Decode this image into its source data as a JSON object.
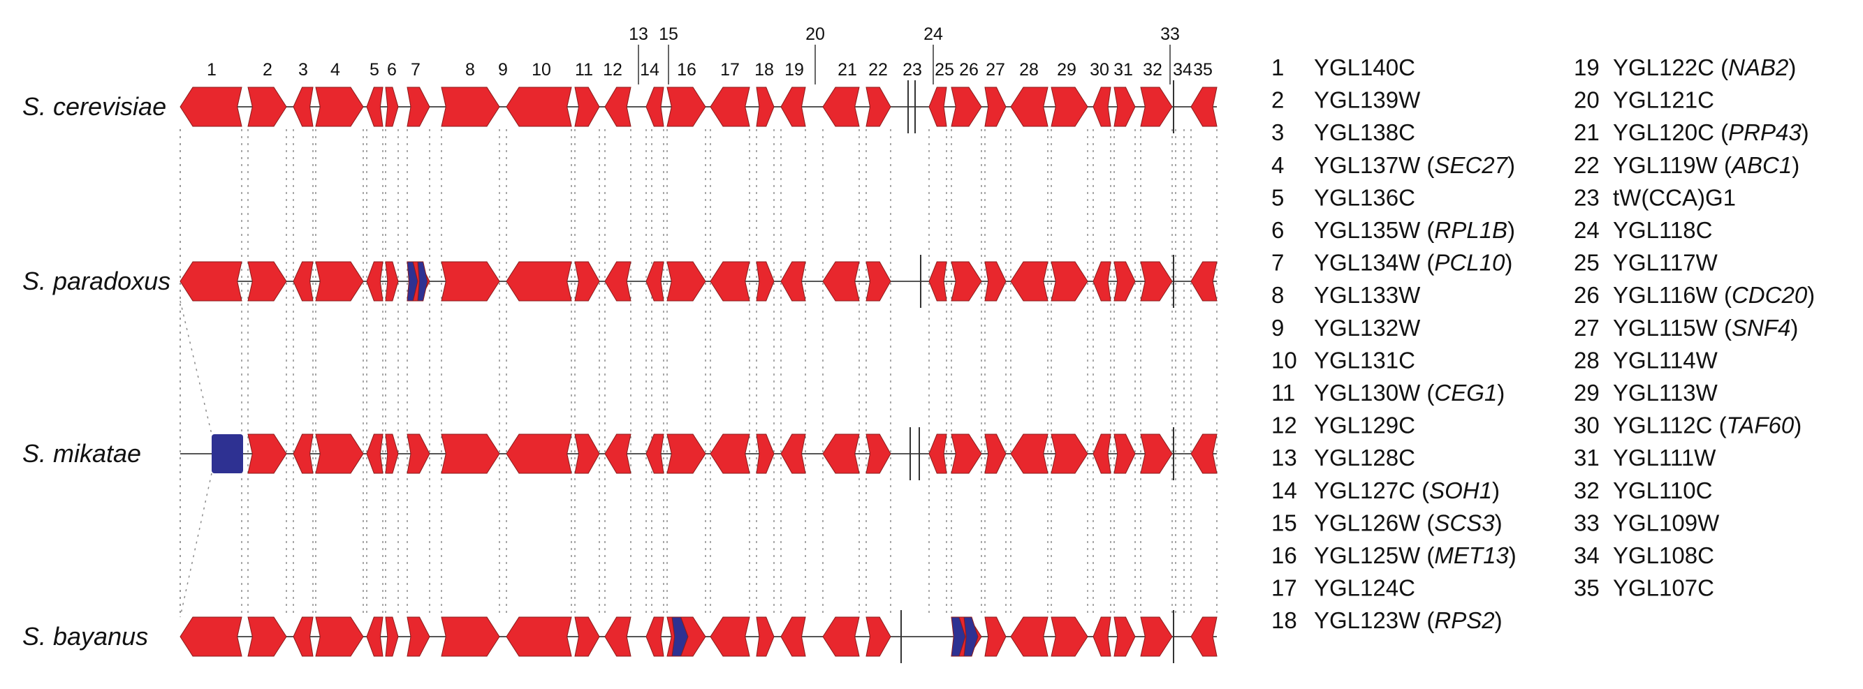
{
  "colors": {
    "conserved": "#e8272d",
    "unique": "#2e3192",
    "line": "#555555",
    "text": "#111111"
  },
  "species": [
    {
      "name": "S. cerevisiae",
      "id": "cer"
    },
    {
      "name": "S. paradoxus",
      "id": "par"
    },
    {
      "name": "S. mikatae",
      "id": "mik"
    },
    {
      "name": "S. bayanus",
      "id": "bay"
    }
  ],
  "gene_numbers": [
    "1",
    "2",
    "3",
    "4",
    "5",
    "6",
    "7",
    "8",
    "9",
    "10",
    "11",
    "12",
    "13",
    "14",
    "15",
    "16",
    "17",
    "18",
    "19",
    "20",
    "21",
    "22",
    "23",
    "24",
    "25",
    "26",
    "27",
    "28",
    "29",
    "30",
    "31",
    "32",
    "33",
    "34",
    "35"
  ],
  "legend": [
    {
      "num": "1",
      "gene": "YGL140C",
      "alias": ""
    },
    {
      "num": "2",
      "gene": "YGL139W",
      "alias": ""
    },
    {
      "num": "3",
      "gene": "YGL138C",
      "alias": ""
    },
    {
      "num": "4",
      "gene": "YGL137W",
      "alias": "SEC27"
    },
    {
      "num": "5",
      "gene": "YGL136C",
      "alias": ""
    },
    {
      "num": "6",
      "gene": "YGL135W",
      "alias": "RPL1B"
    },
    {
      "num": "7",
      "gene": "YGL134W",
      "alias": "PCL10"
    },
    {
      "num": "8",
      "gene": "YGL133W",
      "alias": ""
    },
    {
      "num": "9",
      "gene": "YGL132W",
      "alias": ""
    },
    {
      "num": "10",
      "gene": "YGL131C",
      "alias": ""
    },
    {
      "num": "11",
      "gene": "YGL130W",
      "alias": "CEG1"
    },
    {
      "num": "12",
      "gene": "YGL129C",
      "alias": ""
    },
    {
      "num": "13",
      "gene": "YGL128C",
      "alias": ""
    },
    {
      "num": "14",
      "gene": "YGL127C",
      "alias": "SOH1"
    },
    {
      "num": "15",
      "gene": "YGL126W",
      "alias": "SCS3"
    },
    {
      "num": "16",
      "gene": "YGL125W",
      "alias": "MET13"
    },
    {
      "num": "17",
      "gene": "YGL124C",
      "alias": ""
    },
    {
      "num": "18",
      "gene": "YGL123W",
      "alias": "RPS2"
    },
    {
      "num": "19",
      "gene": "YGL122C",
      "alias": "NAB2"
    },
    {
      "num": "20",
      "gene": "YGL121C",
      "alias": ""
    },
    {
      "num": "21",
      "gene": "YGL120C",
      "alias": "PRP43"
    },
    {
      "num": "22",
      "gene": "YGL119W",
      "alias": "ABC1"
    },
    {
      "num": "23",
      "gene": "tW(CCA)G1",
      "alias": ""
    },
    {
      "num": "24",
      "gene": "YGL118C",
      "alias": ""
    },
    {
      "num": "25",
      "gene": "YGL117W",
      "alias": ""
    },
    {
      "num": "26",
      "gene": "YGL116W",
      "alias": "CDC20"
    },
    {
      "num": "27",
      "gene": "YGL115W",
      "alias": "SNF4"
    },
    {
      "num": "28",
      "gene": "YGL114W",
      "alias": ""
    },
    {
      "num": "29",
      "gene": "YGL113W",
      "alias": ""
    },
    {
      "num": "30",
      "gene": "YGL112C",
      "alias": "TAF60"
    },
    {
      "num": "31",
      "gene": "YGL111W",
      "alias": ""
    },
    {
      "num": "32",
      "gene": "YGL110C",
      "alias": ""
    },
    {
      "num": "33",
      "gene": "YGL109W",
      "alias": ""
    },
    {
      "num": "34",
      "gene": "YGL108C",
      "alias": ""
    },
    {
      "num": "35",
      "gene": "YGL107C",
      "alias": ""
    }
  ]
}
